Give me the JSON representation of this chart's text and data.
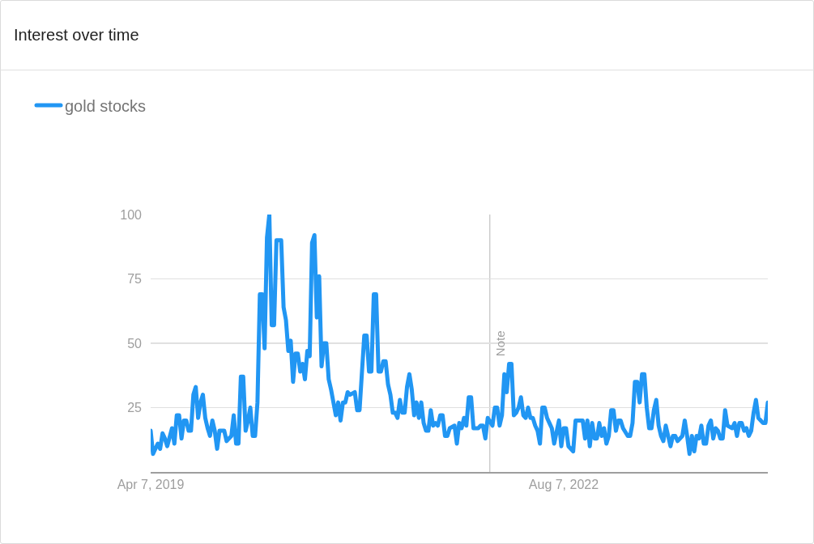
{
  "chart_data": {
    "type": "line",
    "title": "Interest over time",
    "xlim": [
      "2019-04-07",
      "2024-03-31"
    ],
    "xticks": [
      {
        "value": "2019-04-07",
        "label": "Apr 7, 2019"
      },
      {
        "value": "2022-08-07",
        "label": "Aug 7, 2022"
      }
    ],
    "ylim": [
      0,
      100
    ],
    "yticks": [
      25,
      50,
      75,
      100
    ],
    "grid": "y",
    "legend": "top left",
    "ref_lines": [
      {
        "axis": "x",
        "value": "2022-01-01",
        "label": "Note",
        "color": "#cccccc"
      }
    ],
    "series": [
      {
        "name": "gold stocks",
        "color": "#2196f3",
        "x": [
          "2019-04-07",
          "2019-04-14",
          "2019-04-28",
          "2019-05-05",
          "2019-05-12",
          "2019-05-19",
          "2019-05-26",
          "2019-06-09",
          "2019-06-16",
          "2019-06-23",
          "2019-06-30",
          "2019-07-07",
          "2019-07-14",
          "2019-07-21",
          "2019-07-28",
          "2019-08-04",
          "2019-08-11",
          "2019-08-18",
          "2019-08-25",
          "2019-09-01",
          "2019-09-08",
          "2019-09-15",
          "2019-09-22",
          "2019-09-29",
          "2019-10-06",
          "2019-10-13",
          "2019-10-20",
          "2019-10-27",
          "2019-11-10",
          "2019-11-17",
          "2019-12-01",
          "2019-12-08",
          "2019-12-15",
          "2019-12-22",
          "2019-12-29",
          "2020-01-05",
          "2020-01-12",
          "2020-01-19",
          "2020-01-26",
          "2020-02-02",
          "2020-02-09",
          "2020-02-16",
          "2020-02-23",
          "2020-03-01",
          "2020-03-08",
          "2020-03-15",
          "2020-03-22",
          "2020-03-29",
          "2020-04-05",
          "2020-04-12",
          "2020-04-26",
          "2020-05-03",
          "2020-05-10",
          "2020-05-17",
          "2020-05-24",
          "2020-05-31",
          "2020-06-07",
          "2020-06-14",
          "2020-06-21",
          "2020-06-28",
          "2020-07-05",
          "2020-07-12",
          "2020-07-19",
          "2020-07-26",
          "2020-08-02",
          "2020-08-09",
          "2020-08-16",
          "2020-08-23",
          "2020-08-30",
          "2020-09-06",
          "2020-09-13",
          "2020-09-20",
          "2020-09-27",
          "2020-10-04",
          "2020-10-11",
          "2020-10-18",
          "2020-10-25",
          "2020-11-01",
          "2020-11-08",
          "2020-11-15",
          "2020-11-29",
          "2020-12-06",
          "2020-12-13",
          "2020-12-27",
          "2021-01-03",
          "2021-01-10",
          "2021-01-17",
          "2021-01-24",
          "2021-01-31",
          "2021-02-07",
          "2021-02-14",
          "2021-02-21",
          "2021-02-28",
          "2021-03-07",
          "2021-03-14",
          "2021-03-21",
          "2021-03-28",
          "2021-04-04",
          "2021-04-11",
          "2021-04-18",
          "2021-04-25",
          "2021-05-02",
          "2021-05-09",
          "2021-05-16",
          "2021-05-23",
          "2021-05-30",
          "2021-06-06",
          "2021-06-13",
          "2021-06-20",
          "2021-06-27",
          "2021-07-04",
          "2021-07-11",
          "2021-07-18",
          "2021-07-25",
          "2021-08-01",
          "2021-08-08",
          "2021-08-15",
          "2021-08-22",
          "2021-08-29",
          "2021-09-05",
          "2021-09-19",
          "2021-09-26",
          "2021-10-03",
          "2021-10-10",
          "2021-10-17",
          "2021-10-24",
          "2021-10-31",
          "2021-11-07",
          "2021-11-14",
          "2021-11-28",
          "2021-12-05",
          "2021-12-12",
          "2021-12-19",
          "2021-12-26",
          "2022-01-09",
          "2022-01-16",
          "2022-01-23",
          "2022-01-30",
          "2022-02-06",
          "2022-02-13",
          "2022-02-20",
          "2022-02-27",
          "2022-03-06",
          "2022-03-13",
          "2022-03-20",
          "2022-03-27",
          "2022-04-03",
          "2022-04-10",
          "2022-04-17",
          "2022-04-24",
          "2022-05-01",
          "2022-05-08",
          "2022-05-15",
          "2022-05-22",
          "2022-05-29",
          "2022-06-05",
          "2022-06-12",
          "2022-06-19",
          "2022-06-26",
          "2022-07-03",
          "2022-07-10",
          "2022-07-24",
          "2022-07-31",
          "2022-08-07",
          "2022-08-14",
          "2022-08-21",
          "2022-09-04",
          "2022-09-11",
          "2022-10-02",
          "2022-10-09",
          "2022-10-16",
          "2022-10-23",
          "2022-10-30",
          "2022-11-06",
          "2022-11-13",
          "2022-11-20",
          "2022-11-27",
          "2022-12-04",
          "2022-12-11",
          "2022-12-18",
          "2022-12-25",
          "2023-01-01",
          "2023-01-08",
          "2023-01-15",
          "2023-01-22",
          "2023-01-29",
          "2023-02-12",
          "2023-02-19",
          "2023-02-26",
          "2023-03-05",
          "2023-03-12",
          "2023-03-19",
          "2023-03-26",
          "2023-04-02",
          "2023-04-09",
          "2023-04-16",
          "2023-04-23",
          "2023-04-30",
          "2023-05-07",
          "2023-05-14",
          "2023-05-21",
          "2023-05-28",
          "2023-06-04",
          "2023-06-11",
          "2023-06-18",
          "2023-06-25",
          "2023-07-02",
          "2023-07-09",
          "2023-07-23",
          "2023-07-30",
          "2023-08-06",
          "2023-08-13",
          "2023-08-20",
          "2023-08-27",
          "2023-09-03",
          "2023-09-10",
          "2023-09-17",
          "2023-09-24",
          "2023-10-01",
          "2023-10-08",
          "2023-10-15",
          "2023-10-22",
          "2023-10-29",
          "2023-11-05",
          "2023-11-12",
          "2023-11-19",
          "2023-11-26",
          "2023-12-03",
          "2023-12-17",
          "2023-12-24",
          "2023-12-31",
          "2024-01-07",
          "2024-01-14",
          "2024-01-21",
          "2024-01-28",
          "2024-02-04",
          "2024-02-11",
          "2024-02-18",
          "2024-02-25",
          "2024-03-03",
          "2024-03-17",
          "2024-03-24",
          "2024-03-31"
        ],
        "values": [
          16,
          7,
          11,
          9,
          15,
          13,
          10,
          17,
          11,
          22,
          22,
          13,
          20,
          20,
          16,
          16,
          30,
          33,
          21,
          27,
          30,
          21,
          17,
          14,
          20,
          16,
          9,
          16,
          16,
          12,
          14,
          22,
          11,
          11,
          37,
          37,
          16,
          20,
          25,
          14,
          14,
          27,
          69,
          69,
          48,
          91,
          100,
          57,
          57,
          90,
          90,
          64,
          59,
          47,
          51,
          35,
          46,
          46,
          39,
          42,
          36,
          47,
          45,
          89,
          92,
          60,
          76,
          41,
          50,
          50,
          36,
          32,
          27,
          22,
          27,
          20,
          27,
          27,
          31,
          30,
          31,
          24,
          24,
          53,
          53,
          39,
          39,
          69,
          69,
          39,
          39,
          43,
          43,
          34,
          30,
          23,
          23,
          21,
          28,
          23,
          23,
          33,
          38,
          32,
          22,
          27,
          21,
          27,
          19,
          16,
          16,
          24,
          18,
          19,
          18,
          22,
          22,
          14,
          14,
          17,
          18,
          11,
          19,
          17,
          21,
          18,
          29,
          29,
          17,
          17,
          18,
          18,
          13,
          21,
          18,
          25,
          25,
          18,
          22,
          38,
          31,
          42,
          42,
          22,
          23,
          25,
          29,
          22,
          21,
          25,
          21,
          21,
          18,
          16,
          11,
          25,
          25,
          21,
          19,
          17,
          11,
          20,
          10,
          17,
          17,
          10,
          8,
          20,
          20,
          13,
          20,
          10,
          19,
          13,
          13,
          19,
          14,
          17,
          11,
          14,
          24,
          24,
          16,
          20,
          20,
          17,
          14,
          14,
          19,
          35,
          35,
          27,
          38,
          38,
          25,
          17,
          17,
          24,
          28,
          18,
          14,
          12,
          18,
          14,
          10,
          14,
          14,
          12,
          14,
          20,
          14,
          7,
          14,
          8,
          14,
          13,
          18,
          11,
          11,
          18,
          20,
          13,
          17,
          16,
          13,
          13,
          24,
          18,
          17,
          19,
          14,
          19,
          19,
          16,
          17,
          14,
          16,
          23,
          28,
          21,
          19,
          19,
          27
        ]
      }
    ]
  }
}
